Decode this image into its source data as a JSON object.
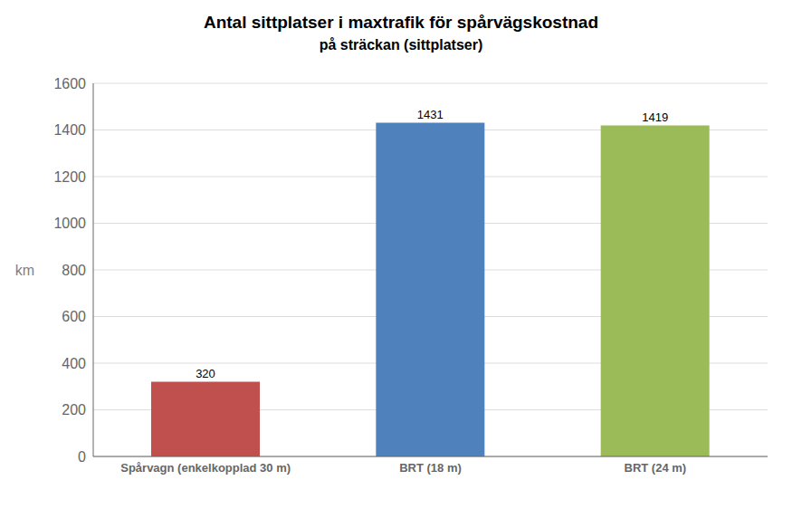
{
  "chart_data": {
    "type": "bar",
    "title": "Antal sittplatser i maxtrafik för spårvägskostnad",
    "subtitle": "på sträckan (sittplatser)",
    "y_label": "km",
    "categories": [
      "Spårvagn (enkelkopplad 30 m)",
      "BRT (18 m)",
      "BRT (24 m)"
    ],
    "values": [
      320,
      1431,
      1419
    ],
    "colors": [
      "#c0504d",
      "#4f81bd",
      "#9bbb59"
    ],
    "ylim": [
      0,
      1600
    ],
    "yticks": [
      0,
      200,
      400,
      600,
      800,
      1000,
      1200,
      1400,
      1600
    ],
    "grid": true,
    "data_labels": true
  }
}
